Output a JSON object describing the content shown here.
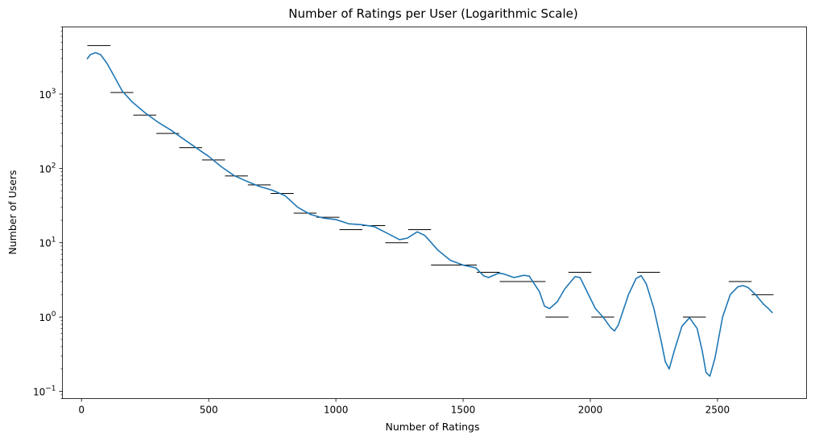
{
  "chart_data": {
    "type": "line",
    "title": "Number of Ratings per User (Logarithmic Scale)",
    "xlabel": "Number of Ratings",
    "ylabel": "Number of Users",
    "xlim": [
      -75,
      2850
    ],
    "ylim": [
      0.08,
      8000
    ],
    "yscale": "log",
    "grid": false,
    "x_ticks": [
      {
        "value": 0,
        "label": "0"
      },
      {
        "value": 500,
        "label": "500"
      },
      {
        "value": 1000,
        "label": "1000"
      },
      {
        "value": 1500,
        "label": "1500"
      },
      {
        "value": 2000,
        "label": "2000"
      },
      {
        "value": 2500,
        "label": "2500"
      }
    ],
    "y_ticks": [
      {
        "value": 0.1,
        "base": "10",
        "exp": "−1"
      },
      {
        "value": 1,
        "base": "10",
        "exp": "0"
      },
      {
        "value": 10,
        "base": "10",
        "exp": "1"
      },
      {
        "value": 100,
        "base": "10",
        "exp": "2"
      },
      {
        "value": 1000,
        "base": "10",
        "exp": "3"
      }
    ],
    "histogram": {
      "color": "#000000",
      "bins": [
        {
          "x0": 23,
          "x1": 114,
          "value": 4500
        },
        {
          "x0": 114,
          "x1": 204,
          "value": 1050
        },
        {
          "x0": 204,
          "x1": 294,
          "value": 520
        },
        {
          "x0": 294,
          "x1": 384,
          "value": 295
        },
        {
          "x0": 384,
          "x1": 474,
          "value": 190
        },
        {
          "x0": 474,
          "x1": 564,
          "value": 130
        },
        {
          "x0": 564,
          "x1": 654,
          "value": 79
        },
        {
          "x0": 654,
          "x1": 744,
          "value": 60
        },
        {
          "x0": 744,
          "x1": 834,
          "value": 46
        },
        {
          "x0": 834,
          "x1": 924,
          "value": 25
        },
        {
          "x0": 924,
          "x1": 1014,
          "value": 22
        },
        {
          "x0": 1014,
          "x1": 1104,
          "value": 15
        },
        {
          "x0": 1104,
          "x1": 1194,
          "value": 17
        },
        {
          "x0": 1194,
          "x1": 1284,
          "value": 10
        },
        {
          "x0": 1284,
          "x1": 1374,
          "value": 15
        },
        {
          "x0": 1374,
          "x1": 1464,
          "value": 5
        },
        {
          "x0": 1464,
          "x1": 1554,
          "value": 5
        },
        {
          "x0": 1554,
          "x1": 1644,
          "value": 4
        },
        {
          "x0": 1644,
          "x1": 1734,
          "value": 3
        },
        {
          "x0": 1734,
          "x1": 1824,
          "value": 3
        },
        {
          "x0": 1824,
          "x1": 1914,
          "value": 1
        },
        {
          "x0": 1914,
          "x1": 2004,
          "value": 4
        },
        {
          "x0": 2004,
          "x1": 2094,
          "value": 1
        },
        {
          "x0": 2184,
          "x1": 2274,
          "value": 4
        },
        {
          "x0": 2364,
          "x1": 2454,
          "value": 1
        },
        {
          "x0": 2544,
          "x1": 2634,
          "value": 3
        },
        {
          "x0": 2634,
          "x1": 2720,
          "value": 2
        }
      ]
    },
    "kde": {
      "color": "#1f77b4",
      "points": [
        [
          23,
          3000
        ],
        [
          35,
          3400
        ],
        [
          55,
          3600
        ],
        [
          75,
          3400
        ],
        [
          100,
          2600
        ],
        [
          130,
          1700
        ],
        [
          160,
          1100
        ],
        [
          200,
          780
        ],
        [
          250,
          560
        ],
        [
          300,
          420
        ],
        [
          350,
          330
        ],
        [
          400,
          250
        ],
        [
          450,
          190
        ],
        [
          500,
          145
        ],
        [
          550,
          105
        ],
        [
          600,
          80
        ],
        [
          650,
          67
        ],
        [
          700,
          57
        ],
        [
          750,
          51
        ],
        [
          800,
          43
        ],
        [
          850,
          30
        ],
        [
          900,
          24
        ],
        [
          950,
          21.5
        ],
        [
          1000,
          20.5
        ],
        [
          1050,
          18
        ],
        [
          1100,
          17.5
        ],
        [
          1150,
          16.5
        ],
        [
          1200,
          13.5
        ],
        [
          1250,
          11
        ],
        [
          1280,
          11.5
        ],
        [
          1320,
          14
        ],
        [
          1350,
          12.5
        ],
        [
          1400,
          8
        ],
        [
          1450,
          5.8
        ],
        [
          1500,
          5
        ],
        [
          1550,
          4.6
        ],
        [
          1580,
          3.6
        ],
        [
          1600,
          3.4
        ],
        [
          1640,
          3.9
        ],
        [
          1660,
          3.8
        ],
        [
          1700,
          3.4
        ],
        [
          1740,
          3.65
        ],
        [
          1760,
          3.55
        ],
        [
          1800,
          2.2
        ],
        [
          1820,
          1.4
        ],
        [
          1840,
          1.3
        ],
        [
          1870,
          1.6
        ],
        [
          1900,
          2.4
        ],
        [
          1940,
          3.5
        ],
        [
          1960,
          3.4
        ],
        [
          1990,
          2.1
        ],
        [
          2020,
          1.3
        ],
        [
          2050,
          1.0
        ],
        [
          2080,
          0.72
        ],
        [
          2095,
          0.65
        ],
        [
          2110,
          0.78
        ],
        [
          2150,
          2.0
        ],
        [
          2180,
          3.3
        ],
        [
          2200,
          3.6
        ],
        [
          2220,
          2.8
        ],
        [
          2250,
          1.3
        ],
        [
          2280,
          0.45
        ],
        [
          2295,
          0.25
        ],
        [
          2310,
          0.2
        ],
        [
          2330,
          0.35
        ],
        [
          2360,
          0.75
        ],
        [
          2390,
          0.98
        ],
        [
          2420,
          0.7
        ],
        [
          2440,
          0.35
        ],
        [
          2455,
          0.18
        ],
        [
          2470,
          0.16
        ],
        [
          2490,
          0.28
        ],
        [
          2520,
          1.0
        ],
        [
          2550,
          2.0
        ],
        [
          2580,
          2.55
        ],
        [
          2600,
          2.65
        ],
        [
          2620,
          2.5
        ],
        [
          2650,
          2.0
        ],
        [
          2680,
          1.5
        ],
        [
          2700,
          1.3
        ],
        [
          2715,
          1.15
        ]
      ]
    }
  }
}
